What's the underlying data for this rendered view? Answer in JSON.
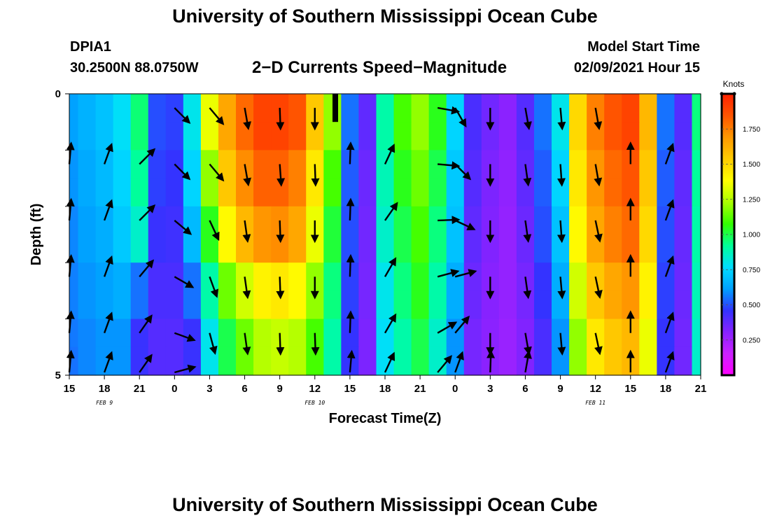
{
  "page": {
    "title_top": "University of Southern Mississippi Ocean Cube",
    "title_bottom": "University of Southern Mississippi Ocean Cube",
    "station_id": "DPIA1",
    "coordinates": "30.2500N 88.0750W",
    "subtitle": "2−D Currents Speed−Magnitude",
    "model_start_label": "Model Start Time",
    "model_start_value": "02/09/2021 Hour 15"
  },
  "chart_data": {
    "type": "heatmap",
    "title": "2−D Currents Speed−Magnitude",
    "xlabel": "Forecast Time(Z)",
    "ylabel": "Depth (ft)",
    "colorbar_label": "Knots",
    "x_hours": [
      0,
      1.5,
      3,
      4.5,
      6,
      7.5,
      9,
      10.5,
      12,
      13.5,
      15,
      16.5,
      18,
      19.5,
      21,
      22.5,
      24,
      25.5,
      27,
      28.5,
      30,
      31.5,
      33,
      34.5,
      36,
      37.5,
      39,
      40.5,
      42,
      43.5,
      45,
      46.5,
      48,
      49.5,
      51,
      52.5,
      54
    ],
    "x_range": [
      0,
      54
    ],
    "x_tick_labels": [
      "15",
      "18",
      "21",
      "0",
      "3",
      "6",
      "9",
      "12",
      "15",
      "18",
      "21",
      "0",
      "3",
      "6",
      "9",
      "12",
      "15",
      "18",
      "21"
    ],
    "date_labels": [
      {
        "hour": 3,
        "text": "FEB 9"
      },
      {
        "hour": 21,
        "text": "FEB 10"
      },
      {
        "hour": 45,
        "text": "FEB 11"
      }
    ],
    "y_range": [
      0,
      5
    ],
    "y_tick_labels": [
      "0",
      "5"
    ],
    "depth_layers": [
      0.25,
      0.75,
      1.25,
      1.75,
      2.25,
      2.75,
      3.25,
      3.75,
      4.25,
      4.75
    ],
    "speed_knots": [
      [
        0.62,
        0.66,
        0.7,
        0.78,
        0.96,
        0.5,
        0.48,
        0.8,
        1.35,
        1.65,
        1.8,
        1.9,
        1.9,
        1.85,
        1.55,
        1.2,
        0.55,
        0.38,
        0.9,
        1.1,
        1.2,
        1.05,
        0.75,
        0.42,
        0.35,
        0.3,
        0.4,
        0.55,
        0.8,
        1.5,
        1.75,
        1.85,
        1.9,
        1.6,
        0.55,
        0.4,
        0.95
      ],
      [
        0.62,
        0.66,
        0.7,
        0.78,
        0.96,
        0.5,
        0.48,
        0.8,
        1.35,
        1.65,
        1.8,
        1.9,
        1.9,
        1.85,
        1.55,
        1.2,
        0.55,
        0.38,
        0.9,
        1.1,
        1.2,
        1.05,
        0.75,
        0.42,
        0.35,
        0.3,
        0.4,
        0.55,
        0.8,
        1.5,
        1.75,
        1.85,
        1.9,
        1.6,
        0.55,
        0.4,
        0.95
      ],
      [
        0.6,
        0.64,
        0.68,
        0.75,
        0.92,
        0.48,
        0.46,
        0.75,
        1.2,
        1.55,
        1.72,
        1.82,
        1.82,
        1.75,
        1.45,
        1.1,
        0.52,
        0.36,
        0.88,
        1.05,
        1.15,
        1.0,
        0.72,
        0.4,
        0.33,
        0.29,
        0.38,
        0.52,
        0.75,
        1.45,
        1.7,
        1.8,
        1.85,
        1.55,
        0.52,
        0.38,
        0.92
      ],
      [
        0.6,
        0.64,
        0.68,
        0.75,
        0.92,
        0.48,
        0.46,
        0.75,
        1.2,
        1.55,
        1.72,
        1.82,
        1.82,
        1.75,
        1.45,
        1.1,
        0.52,
        0.36,
        0.88,
        1.05,
        1.15,
        1.0,
        0.72,
        0.4,
        0.33,
        0.29,
        0.38,
        0.52,
        0.75,
        1.45,
        1.7,
        1.8,
        1.85,
        1.55,
        0.52,
        0.38,
        0.92
      ],
      [
        0.58,
        0.62,
        0.65,
        0.72,
        0.85,
        0.45,
        0.44,
        0.68,
        1.05,
        1.4,
        1.6,
        1.7,
        1.72,
        1.65,
        1.35,
        1.02,
        0.5,
        0.35,
        0.85,
        1.0,
        1.1,
        0.95,
        0.7,
        0.38,
        0.32,
        0.28,
        0.36,
        0.5,
        0.7,
        1.4,
        1.65,
        1.75,
        1.8,
        1.5,
        0.5,
        0.37,
        0.9
      ],
      [
        0.58,
        0.62,
        0.65,
        0.72,
        0.85,
        0.45,
        0.44,
        0.68,
        1.05,
        1.4,
        1.6,
        1.7,
        1.72,
        1.65,
        1.35,
        1.02,
        0.5,
        0.35,
        0.85,
        1.0,
        1.1,
        0.95,
        0.7,
        0.38,
        0.32,
        0.28,
        0.36,
        0.5,
        0.7,
        1.4,
        1.65,
        1.75,
        1.8,
        1.5,
        0.5,
        0.37,
        0.9
      ],
      [
        0.57,
        0.6,
        0.62,
        0.65,
        0.55,
        0.42,
        0.42,
        0.55,
        0.9,
        1.15,
        1.3,
        1.42,
        1.45,
        1.4,
        1.2,
        0.95,
        0.48,
        0.34,
        0.8,
        0.95,
        1.05,
        0.9,
        0.65,
        0.36,
        0.31,
        0.28,
        0.34,
        0.46,
        0.65,
        1.3,
        1.55,
        1.65,
        1.7,
        1.42,
        0.48,
        0.36,
        0.88
      ],
      [
        0.57,
        0.6,
        0.62,
        0.65,
        0.55,
        0.42,
        0.42,
        0.55,
        0.9,
        1.15,
        1.3,
        1.42,
        1.45,
        1.4,
        1.2,
        0.95,
        0.48,
        0.34,
        0.8,
        0.95,
        1.05,
        0.9,
        0.65,
        0.36,
        0.31,
        0.28,
        0.34,
        0.46,
        0.65,
        1.3,
        1.55,
        1.65,
        1.7,
        1.42,
        0.48,
        0.36,
        0.88
      ],
      [
        0.56,
        0.58,
        0.6,
        0.6,
        0.45,
        0.4,
        0.4,
        0.45,
        0.8,
        1.0,
        1.15,
        1.25,
        1.28,
        1.25,
        1.1,
        0.9,
        0.46,
        0.33,
        0.78,
        0.9,
        1.0,
        0.85,
        0.6,
        0.34,
        0.3,
        0.27,
        0.32,
        0.42,
        0.6,
        1.2,
        1.45,
        1.55,
        1.6,
        1.35,
        0.46,
        0.35,
        0.85
      ],
      [
        0.55,
        0.58,
        0.6,
        0.6,
        0.45,
        0.4,
        0.4,
        0.45,
        0.8,
        1.0,
        1.15,
        1.25,
        1.28,
        1.25,
        1.1,
        0.9,
        0.46,
        0.33,
        0.78,
        0.9,
        1.0,
        0.85,
        0.6,
        0.34,
        0.3,
        0.27,
        0.32,
        0.42,
        0.6,
        1.2,
        1.45,
        1.55,
        1.6,
        1.35,
        0.46,
        0.35,
        0.85
      ]
    ],
    "missing_cells": [
      {
        "x_hour": 22.75,
        "depth_from": 0,
        "depth_to": 0.5
      }
    ],
    "vector_rows": [
      {
        "depth": 0.25,
        "vectors": [
          {
            "hour": 9,
            "angle_deg": 135
          },
          {
            "hour": 12,
            "angle_deg": 140
          },
          {
            "hour": 15,
            "angle_deg": 170
          },
          {
            "hour": 18,
            "angle_deg": 178
          },
          {
            "hour": 21,
            "angle_deg": 180
          },
          {
            "hour": 31.5,
            "angle_deg": 100
          },
          {
            "hour": 33,
            "angle_deg": 150
          },
          {
            "hour": 36,
            "angle_deg": 180
          },
          {
            "hour": 39,
            "angle_deg": 170
          },
          {
            "hour": 42,
            "angle_deg": 175
          },
          {
            "hour": 45,
            "angle_deg": 170
          }
        ]
      },
      {
        "depth": 1.25,
        "vectors": [
          {
            "hour": 0,
            "angle_deg": 5
          },
          {
            "hour": 3,
            "angle_deg": 20
          },
          {
            "hour": 6,
            "angle_deg": 45
          },
          {
            "hour": 9,
            "angle_deg": 135
          },
          {
            "hour": 12,
            "angle_deg": 140
          },
          {
            "hour": 15,
            "angle_deg": 170
          },
          {
            "hour": 18,
            "angle_deg": 176
          },
          {
            "hour": 21,
            "angle_deg": 178
          },
          {
            "hour": 24,
            "angle_deg": 2
          },
          {
            "hour": 27,
            "angle_deg": 25
          },
          {
            "hour": 31.5,
            "angle_deg": 95
          },
          {
            "hour": 33,
            "angle_deg": 135
          },
          {
            "hour": 36,
            "angle_deg": 180
          },
          {
            "hour": 39,
            "angle_deg": 172
          },
          {
            "hour": 42,
            "angle_deg": 176
          },
          {
            "hour": 45,
            "angle_deg": 170
          },
          {
            "hour": 48,
            "angle_deg": 0
          },
          {
            "hour": 51,
            "angle_deg": 20
          }
        ]
      },
      {
        "depth": 2.25,
        "vectors": [
          {
            "hour": 0,
            "angle_deg": 5
          },
          {
            "hour": 3,
            "angle_deg": 20
          },
          {
            "hour": 6,
            "angle_deg": 45
          },
          {
            "hour": 9,
            "angle_deg": 130
          },
          {
            "hour": 12,
            "angle_deg": 155
          },
          {
            "hour": 15,
            "angle_deg": 172
          },
          {
            "hour": 18,
            "angle_deg": 178
          },
          {
            "hour": 21,
            "angle_deg": 180
          },
          {
            "hour": 24,
            "angle_deg": 2
          },
          {
            "hour": 27,
            "angle_deg": 35
          },
          {
            "hour": 31.5,
            "angle_deg": 88
          },
          {
            "hour": 33,
            "angle_deg": 115
          },
          {
            "hour": 36,
            "angle_deg": 180
          },
          {
            "hour": 39,
            "angle_deg": 172
          },
          {
            "hour": 42,
            "angle_deg": 176
          },
          {
            "hour": 45,
            "angle_deg": 168
          },
          {
            "hour": 48,
            "angle_deg": 0
          },
          {
            "hour": 51,
            "angle_deg": 20
          }
        ]
      },
      {
        "depth": 3.25,
        "vectors": [
          {
            "hour": 0,
            "angle_deg": 5
          },
          {
            "hour": 3,
            "angle_deg": 20
          },
          {
            "hour": 6,
            "angle_deg": 40
          },
          {
            "hour": 9,
            "angle_deg": 120
          },
          {
            "hour": 12,
            "angle_deg": 160
          },
          {
            "hour": 15,
            "angle_deg": 172
          },
          {
            "hour": 18,
            "angle_deg": 178
          },
          {
            "hour": 21,
            "angle_deg": 180
          },
          {
            "hour": 24,
            "angle_deg": 2
          },
          {
            "hour": 27,
            "angle_deg": 30
          },
          {
            "hour": 31.5,
            "angle_deg": 75
          },
          {
            "hour": 33,
            "angle_deg": 75
          },
          {
            "hour": 36,
            "angle_deg": 180
          },
          {
            "hour": 39,
            "angle_deg": 172
          },
          {
            "hour": 42,
            "angle_deg": 175
          },
          {
            "hour": 45,
            "angle_deg": 168
          },
          {
            "hour": 48,
            "angle_deg": 0
          },
          {
            "hour": 51,
            "angle_deg": 20
          }
        ]
      },
      {
        "depth": 4.25,
        "vectors": [
          {
            "hour": 0,
            "angle_deg": 5
          },
          {
            "hour": 3,
            "angle_deg": 20
          },
          {
            "hour": 6,
            "angle_deg": 35
          },
          {
            "hour": 9,
            "angle_deg": 110
          },
          {
            "hour": 12,
            "angle_deg": 165
          },
          {
            "hour": 15,
            "angle_deg": 172
          },
          {
            "hour": 18,
            "angle_deg": 178
          },
          {
            "hour": 21,
            "angle_deg": 178
          },
          {
            "hour": 24,
            "angle_deg": 2
          },
          {
            "hour": 27,
            "angle_deg": 30
          },
          {
            "hour": 31.5,
            "angle_deg": 60
          },
          {
            "hour": 33,
            "angle_deg": 40
          },
          {
            "hour": 36,
            "angle_deg": 180
          },
          {
            "hour": 39,
            "angle_deg": 170
          },
          {
            "hour": 42,
            "angle_deg": 175
          },
          {
            "hour": 45,
            "angle_deg": 168
          },
          {
            "hour": 48,
            "angle_deg": 0
          },
          {
            "hour": 51,
            "angle_deg": 20
          }
        ]
      },
      {
        "depth": 4.95,
        "vectors": [
          {
            "hour": 0,
            "angle_deg": 5
          },
          {
            "hour": 3,
            "angle_deg": 20
          },
          {
            "hour": 6,
            "angle_deg": 35
          },
          {
            "hour": 9,
            "angle_deg": 75
          },
          {
            "hour": 24,
            "angle_deg": 5
          },
          {
            "hour": 27,
            "angle_deg": 25
          },
          {
            "hour": 31.5,
            "angle_deg": 40
          },
          {
            "hour": 33,
            "angle_deg": 20
          },
          {
            "hour": 36,
            "angle_deg": 2
          },
          {
            "hour": 39,
            "angle_deg": 10
          },
          {
            "hour": 48,
            "angle_deg": 0
          },
          {
            "hour": 51,
            "angle_deg": 20
          }
        ]
      }
    ],
    "colorbar": {
      "min": 0.0,
      "max": 2.0,
      "tick_values": [
        0.25,
        0.5,
        0.75,
        1.0,
        1.25,
        1.5,
        1.75
      ],
      "tick_labels": [
        "0.250",
        "0.500",
        "0.750",
        "1.000",
        "1.250",
        "1.500",
        "1.750"
      ],
      "colors": [
        "#ff00ff",
        "#cc22ff",
        "#8822ff",
        "#3333ff",
        "#00a0ff",
        "#00ddff",
        "#00ff99",
        "#33ff00",
        "#aaff00",
        "#ffff00",
        "#ffcc00",
        "#ff9900",
        "#ff5500",
        "#ff2200"
      ]
    }
  }
}
